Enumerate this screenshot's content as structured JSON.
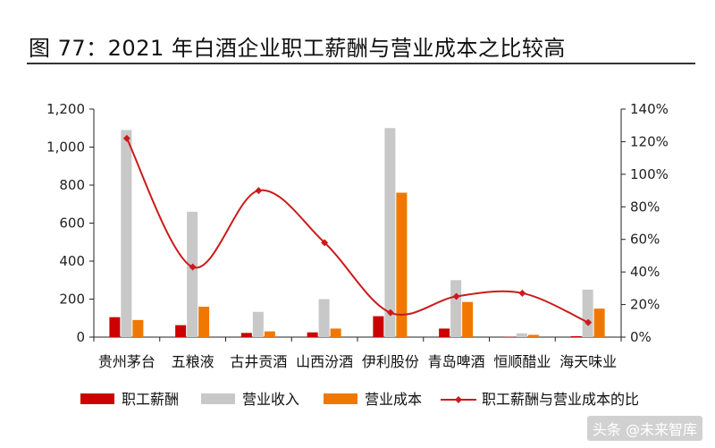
{
  "title": "图 77：2021 年白酒企业职工薪酬与营业成本之比较高",
  "watermark": "头条 @未来智库",
  "colors": {
    "salary": "#cc0000",
    "revenue": "#c8c8c8",
    "cost": "#f07800",
    "ratio": "#cc1a1a",
    "axis": "#222222"
  },
  "chart_data": {
    "type": "bar",
    "categories": [
      "贵州茅台",
      "五粮液",
      "古井贡酒",
      "山西汾酒",
      "伊利股份",
      "青岛啤酒",
      "恒顺醋业",
      "海天味业"
    ],
    "series": [
      {
        "name": "职工薪酬",
        "type": "bar",
        "axis": "left",
        "values": [
          105,
          63,
          22,
          25,
          110,
          45,
          2,
          5
        ]
      },
      {
        "name": "营业收入",
        "type": "bar",
        "axis": "left",
        "values": [
          1090,
          660,
          133,
          200,
          1100,
          300,
          20,
          250
        ]
      },
      {
        "name": "营业成本",
        "type": "bar",
        "axis": "left",
        "values": [
          90,
          160,
          30,
          45,
          760,
          185,
          12,
          150
        ]
      },
      {
        "name": "职工薪酬与营业成本的比",
        "type": "line",
        "axis": "right",
        "values": [
          122,
          43,
          90,
          58,
          15,
          25,
          27,
          9
        ]
      }
    ],
    "y_left": {
      "min": 0,
      "max": 1200,
      "ticks": [
        "0",
        "200",
        "400",
        "600",
        "800",
        "1,000",
        "1,200"
      ]
    },
    "y_right": {
      "min": 0,
      "max": 140,
      "ticks": [
        "0%",
        "20%",
        "40%",
        "60%",
        "80%",
        "100%",
        "120%",
        "140%"
      ]
    },
    "grid": false,
    "legend": "bottom"
  }
}
